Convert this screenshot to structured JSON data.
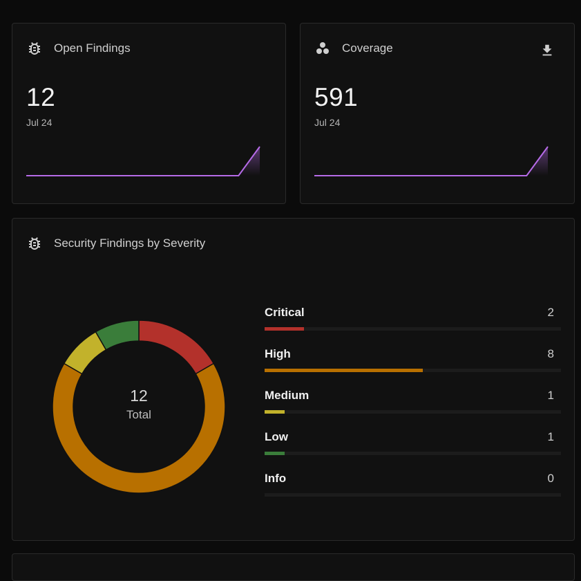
{
  "colors": {
    "accent_line": "#b66be8",
    "critical": "#b3312b",
    "high": "#b87000",
    "medium": "#c2b22b",
    "low": "#3a7d3a",
    "info": "#555555"
  },
  "open_findings": {
    "title": "Open Findings",
    "icon": "bug-icon",
    "value": "12",
    "date": "Jul 24",
    "sparkline": [
      0,
      0,
      0,
      0,
      0,
      0,
      0,
      0,
      0,
      0,
      0,
      12
    ]
  },
  "coverage": {
    "title": "Coverage",
    "icon": "bubbles-icon",
    "action_icon": "download-icon",
    "value": "591",
    "date": "Jul 24",
    "sparkline": [
      0,
      0,
      0,
      0,
      0,
      0,
      0,
      0,
      0,
      0,
      0,
      591
    ]
  },
  "severity": {
    "title": "Security Findings by Severity",
    "icon": "bug-icon",
    "total_value": "12",
    "total_label": "Total",
    "items": [
      {
        "label": "Critical",
        "count": "2",
        "value": 2,
        "color": "#b3312b"
      },
      {
        "label": "High",
        "count": "8",
        "value": 8,
        "color": "#b87000"
      },
      {
        "label": "Medium",
        "count": "1",
        "value": 1,
        "color": "#c2b22b"
      },
      {
        "label": "Low",
        "count": "1",
        "value": 1,
        "color": "#3a7d3a"
      },
      {
        "label": "Info",
        "count": "0",
        "value": 0,
        "color": "#555555"
      }
    ]
  }
}
